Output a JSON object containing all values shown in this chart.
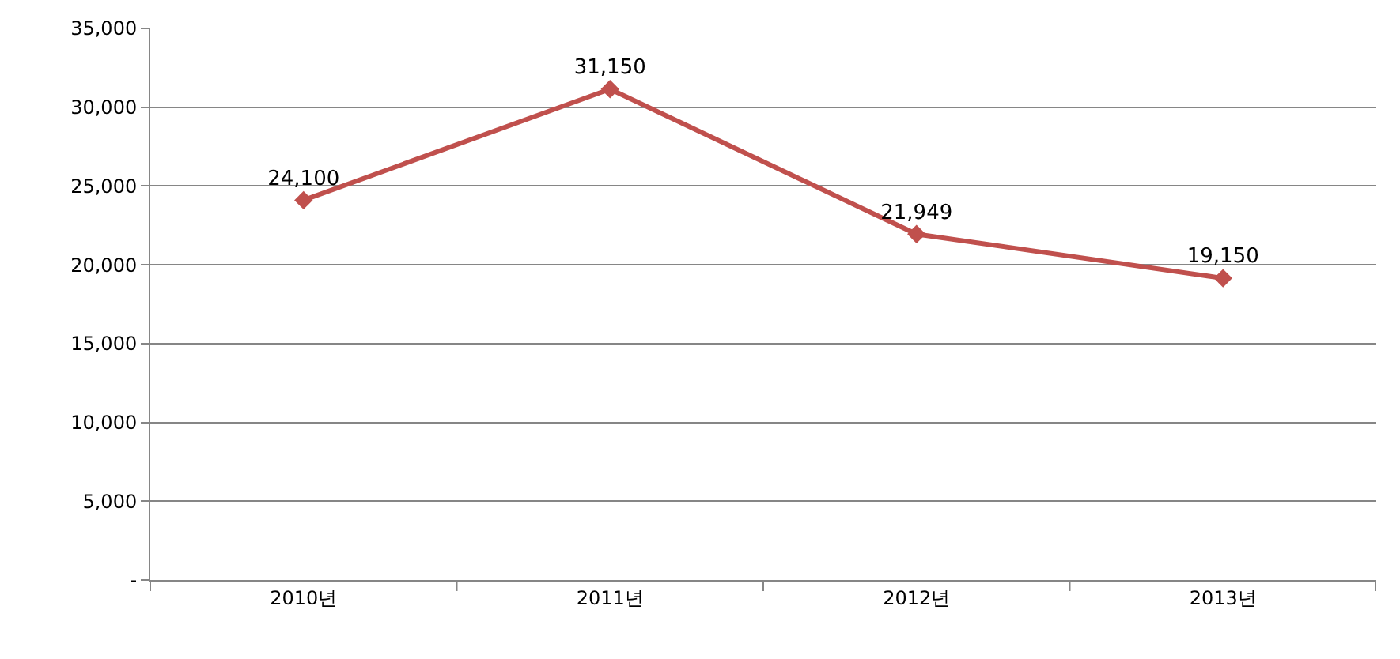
{
  "chart_data": {
    "type": "line",
    "categories": [
      "2010년",
      "2011년",
      "2012년",
      "2013년"
    ],
    "series": [
      {
        "color": "#c0504d",
        "values": [
          24100,
          31150,
          21949,
          19150
        ],
        "value_labels": [
          "24,100",
          "31,150",
          "21,949",
          "19,150"
        ]
      }
    ],
    "ylim": [
      0,
      35000
    ],
    "yticks": [
      {
        "value": 0,
        "label": "-"
      },
      {
        "value": 5000,
        "label": "5,000"
      },
      {
        "value": 10000,
        "label": "10,000"
      },
      {
        "value": 15000,
        "label": "15,000"
      },
      {
        "value": 20000,
        "label": "20,000"
      },
      {
        "value": 25000,
        "label": "25,000"
      },
      {
        "value": 30000,
        "label": "30,000"
      },
      {
        "value": 35000,
        "label": "35,000"
      }
    ],
    "grid": "y",
    "marker": "diamond",
    "line_style": "solid",
    "legend": false
  }
}
